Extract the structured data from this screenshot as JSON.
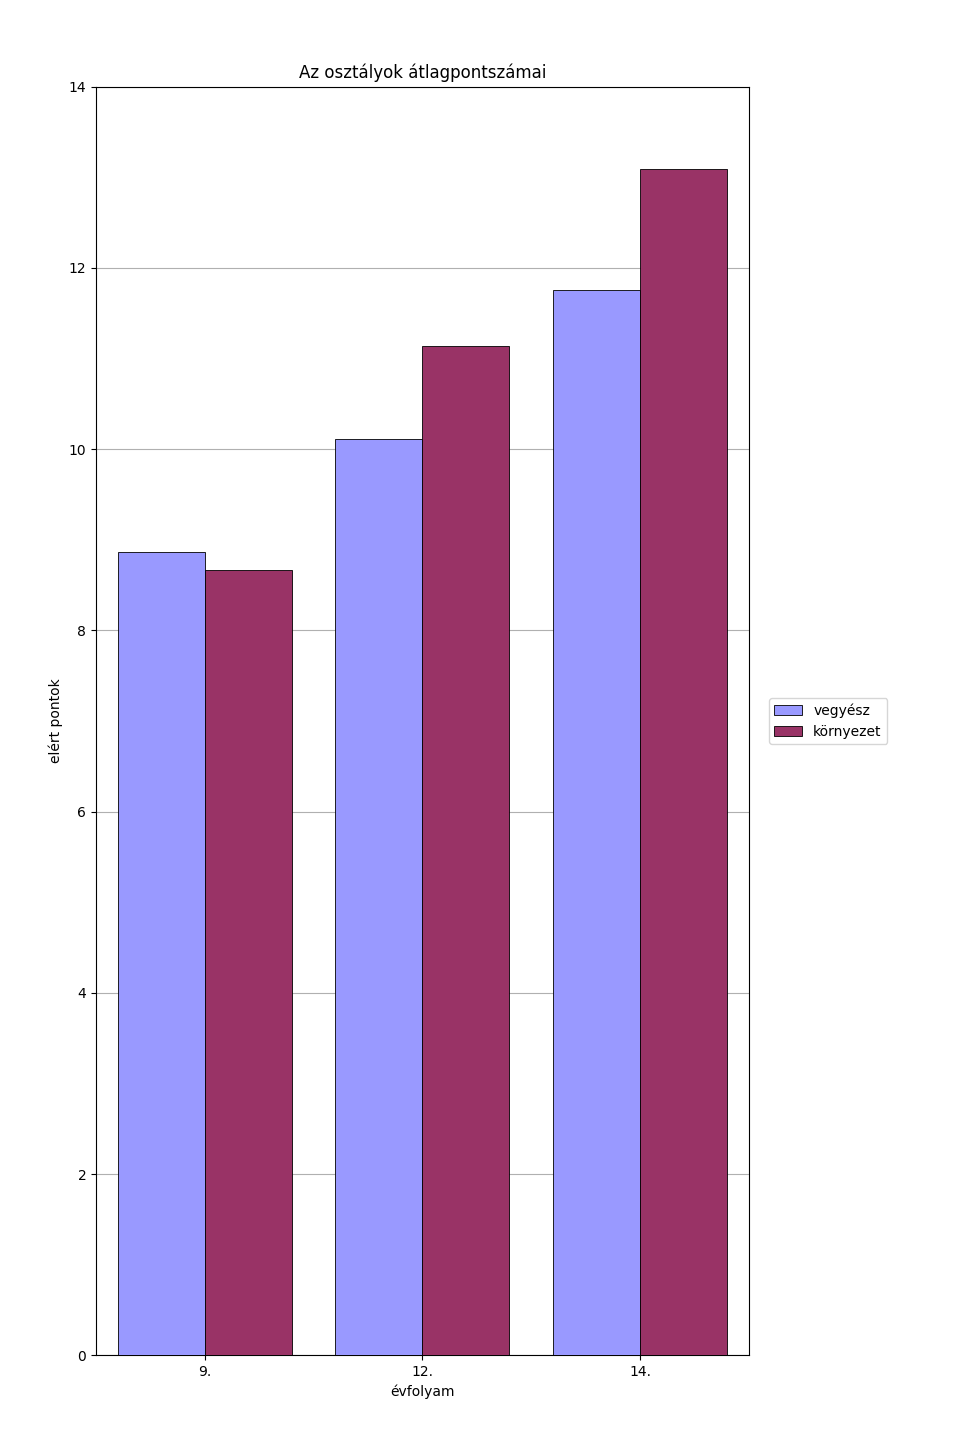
{
  "chart_data": {
    "type": "bar",
    "title": "Az osztályok átlagpontszámai",
    "xlabel": "évfolyam",
    "ylabel": "elért pontok",
    "categories": [
      "9.",
      "12.",
      "14."
    ],
    "series": [
      {
        "name": "vegyész",
        "color": "#9999ff",
        "values": [
          8.86,
          10.11,
          11.76
        ]
      },
      {
        "name": "környezet",
        "color": "#993366",
        "values": [
          8.67,
          11.14,
          13.095
        ]
      }
    ],
    "ylim": [
      0,
      14
    ],
    "yticks": [
      0,
      2,
      4,
      6,
      8,
      10,
      12,
      14
    ],
    "grid": true,
    "legend": "right"
  }
}
